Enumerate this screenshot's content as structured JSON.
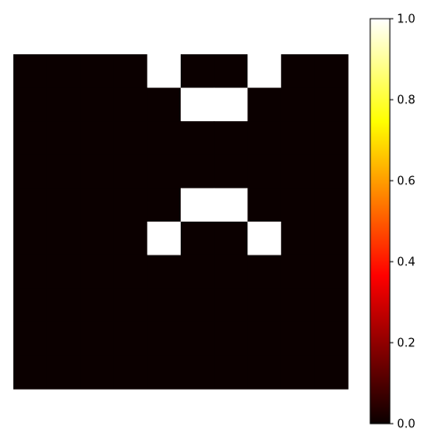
{
  "chart_data": {
    "type": "heatmap",
    "colormap": "hot",
    "rows": 10,
    "cols": 10,
    "values": [
      [
        0,
        0,
        0,
        0,
        1,
        0,
        0,
        1,
        0,
        0
      ],
      [
        0,
        0,
        0,
        0,
        0,
        1,
        1,
        0,
        0,
        0
      ],
      [
        0,
        0,
        0,
        0,
        0,
        0,
        0,
        0,
        0,
        0
      ],
      [
        0,
        0,
        0,
        0,
        0,
        0,
        0,
        0,
        0,
        0
      ],
      [
        0,
        0,
        0,
        0,
        0,
        1,
        1,
        0,
        0,
        0
      ],
      [
        0,
        0,
        0,
        0,
        1,
        0,
        0,
        1,
        0,
        0
      ],
      [
        0,
        0,
        0,
        0,
        0,
        0,
        0,
        0,
        0,
        0
      ],
      [
        0,
        0,
        0,
        0,
        0,
        0,
        0,
        0,
        0,
        0
      ],
      [
        0,
        0,
        0,
        0,
        0,
        0,
        0,
        0,
        0,
        0
      ],
      [
        0,
        0,
        0,
        0,
        0,
        0,
        0,
        0,
        0,
        0
      ]
    ],
    "title": "",
    "xlabel": "",
    "ylabel": "",
    "axes_visible": false,
    "colorbar": {
      "range": [
        0,
        1
      ],
      "ticks": [
        0.0,
        0.2,
        0.4,
        0.6,
        0.8,
        1.0
      ],
      "tick_labels": [
        "0.0",
        "0.2",
        "0.4",
        "0.6",
        "0.8",
        "1.0"
      ],
      "placement": "right"
    },
    "colors": {
      "zero": "#0b0000",
      "one": "#ffffff"
    }
  }
}
